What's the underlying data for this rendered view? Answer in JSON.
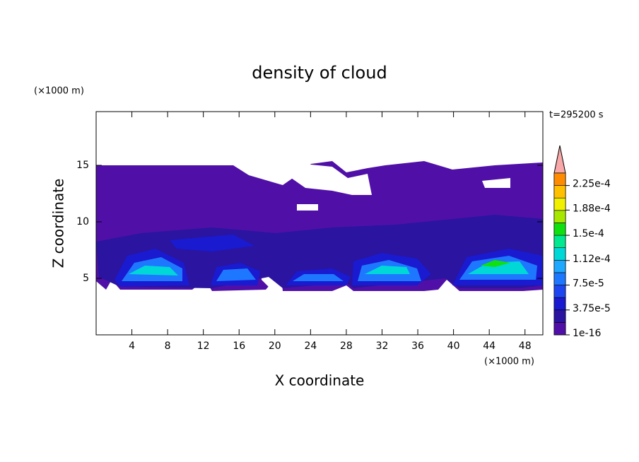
{
  "chart_data": {
    "type": "contour",
    "title": "density of cloud",
    "subtitle": "t=295200 s",
    "x_label": "X coordinate",
    "y_label": "Z coordinate",
    "x_unit": "(×1000 m)",
    "y_unit": "(×1000 m)",
    "xlim": [
      0,
      50
    ],
    "ylim": [
      0,
      19.75
    ],
    "xticks": [
      4,
      8,
      12,
      16,
      20,
      24,
      28,
      32,
      36,
      40,
      44,
      48
    ],
    "yticks": [
      5,
      10,
      15
    ],
    "colorbar": {
      "clim": [
        0,
        0.00024375
      ],
      "ticks": [
        {
          "value": 1e-16,
          "label": "1e-16"
        },
        {
          "value": 3.75e-05,
          "label": "3.75e-5"
        },
        {
          "value": 7.5e-05,
          "label": "7.5e-5"
        },
        {
          "value": 0.000112,
          "label": "1.12e-4"
        },
        {
          "value": 0.00015,
          "label": "1.5e-4"
        },
        {
          "value": 0.000188,
          "label": "1.88e-4"
        },
        {
          "value": 0.000225,
          "label": "2.25e-4"
        }
      ],
      "colors": [
        "#5010a8",
        "#2a14a0",
        "#1a1ad0",
        "#1e46f0",
        "#1e78ff",
        "#1ea8ff",
        "#00d8d8",
        "#00e890",
        "#10e010",
        "#a8e800",
        "#f0f000",
        "#ffc000",
        "#ff8c00",
        "#ff2a1a"
      ],
      "extend_color": "#f8a8a8"
    }
  }
}
